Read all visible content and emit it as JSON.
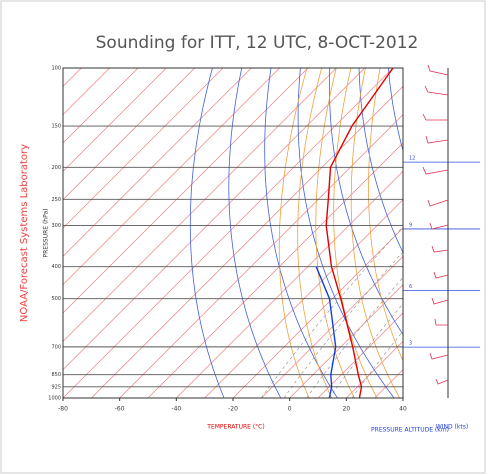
{
  "chart_data": {
    "type": "skewt",
    "title": "Sounding for ITT, 12 UTC,   8-OCT-2012",
    "side_label": "NOAA/Forecast Systems Laboratory",
    "xlabel": "TEMPERATURE (°C)",
    "ylabel": "PRESSURE (hPa)",
    "y2label": "PRESSURE ALTITUDE (km)",
    "wind_label": "WIND (kts)",
    "xlim": [
      -80,
      40
    ],
    "xticks": [
      -80,
      -60,
      -40,
      -20,
      0,
      20,
      40
    ],
    "ylim": [
      1000,
      100
    ],
    "yticks": [
      1000,
      925,
      850,
      700,
      500,
      400,
      300,
      250,
      200,
      150,
      100
    ],
    "log_scale": true,
    "y2ticks": [
      3,
      6,
      9,
      12
    ],
    "x": [
      1000,
      925,
      850,
      700,
      500,
      400,
      300,
      250,
      200,
      150,
      100
    ],
    "series": [
      {
        "name": "Temperature",
        "color": "#e00000",
        "values": [
          24.6,
          21.4,
          16,
          4.2,
          -17,
          -31.6,
          -48,
          -56.5,
          -67,
          -74,
          -80
        ]
      },
      {
        "name": "Dewpoint",
        "color": "#1040e0",
        "values": [
          14,
          10.9,
          6.3,
          -1.8,
          -21,
          -37,
          null,
          null,
          null,
          null,
          null
        ]
      }
    ]
  }
}
